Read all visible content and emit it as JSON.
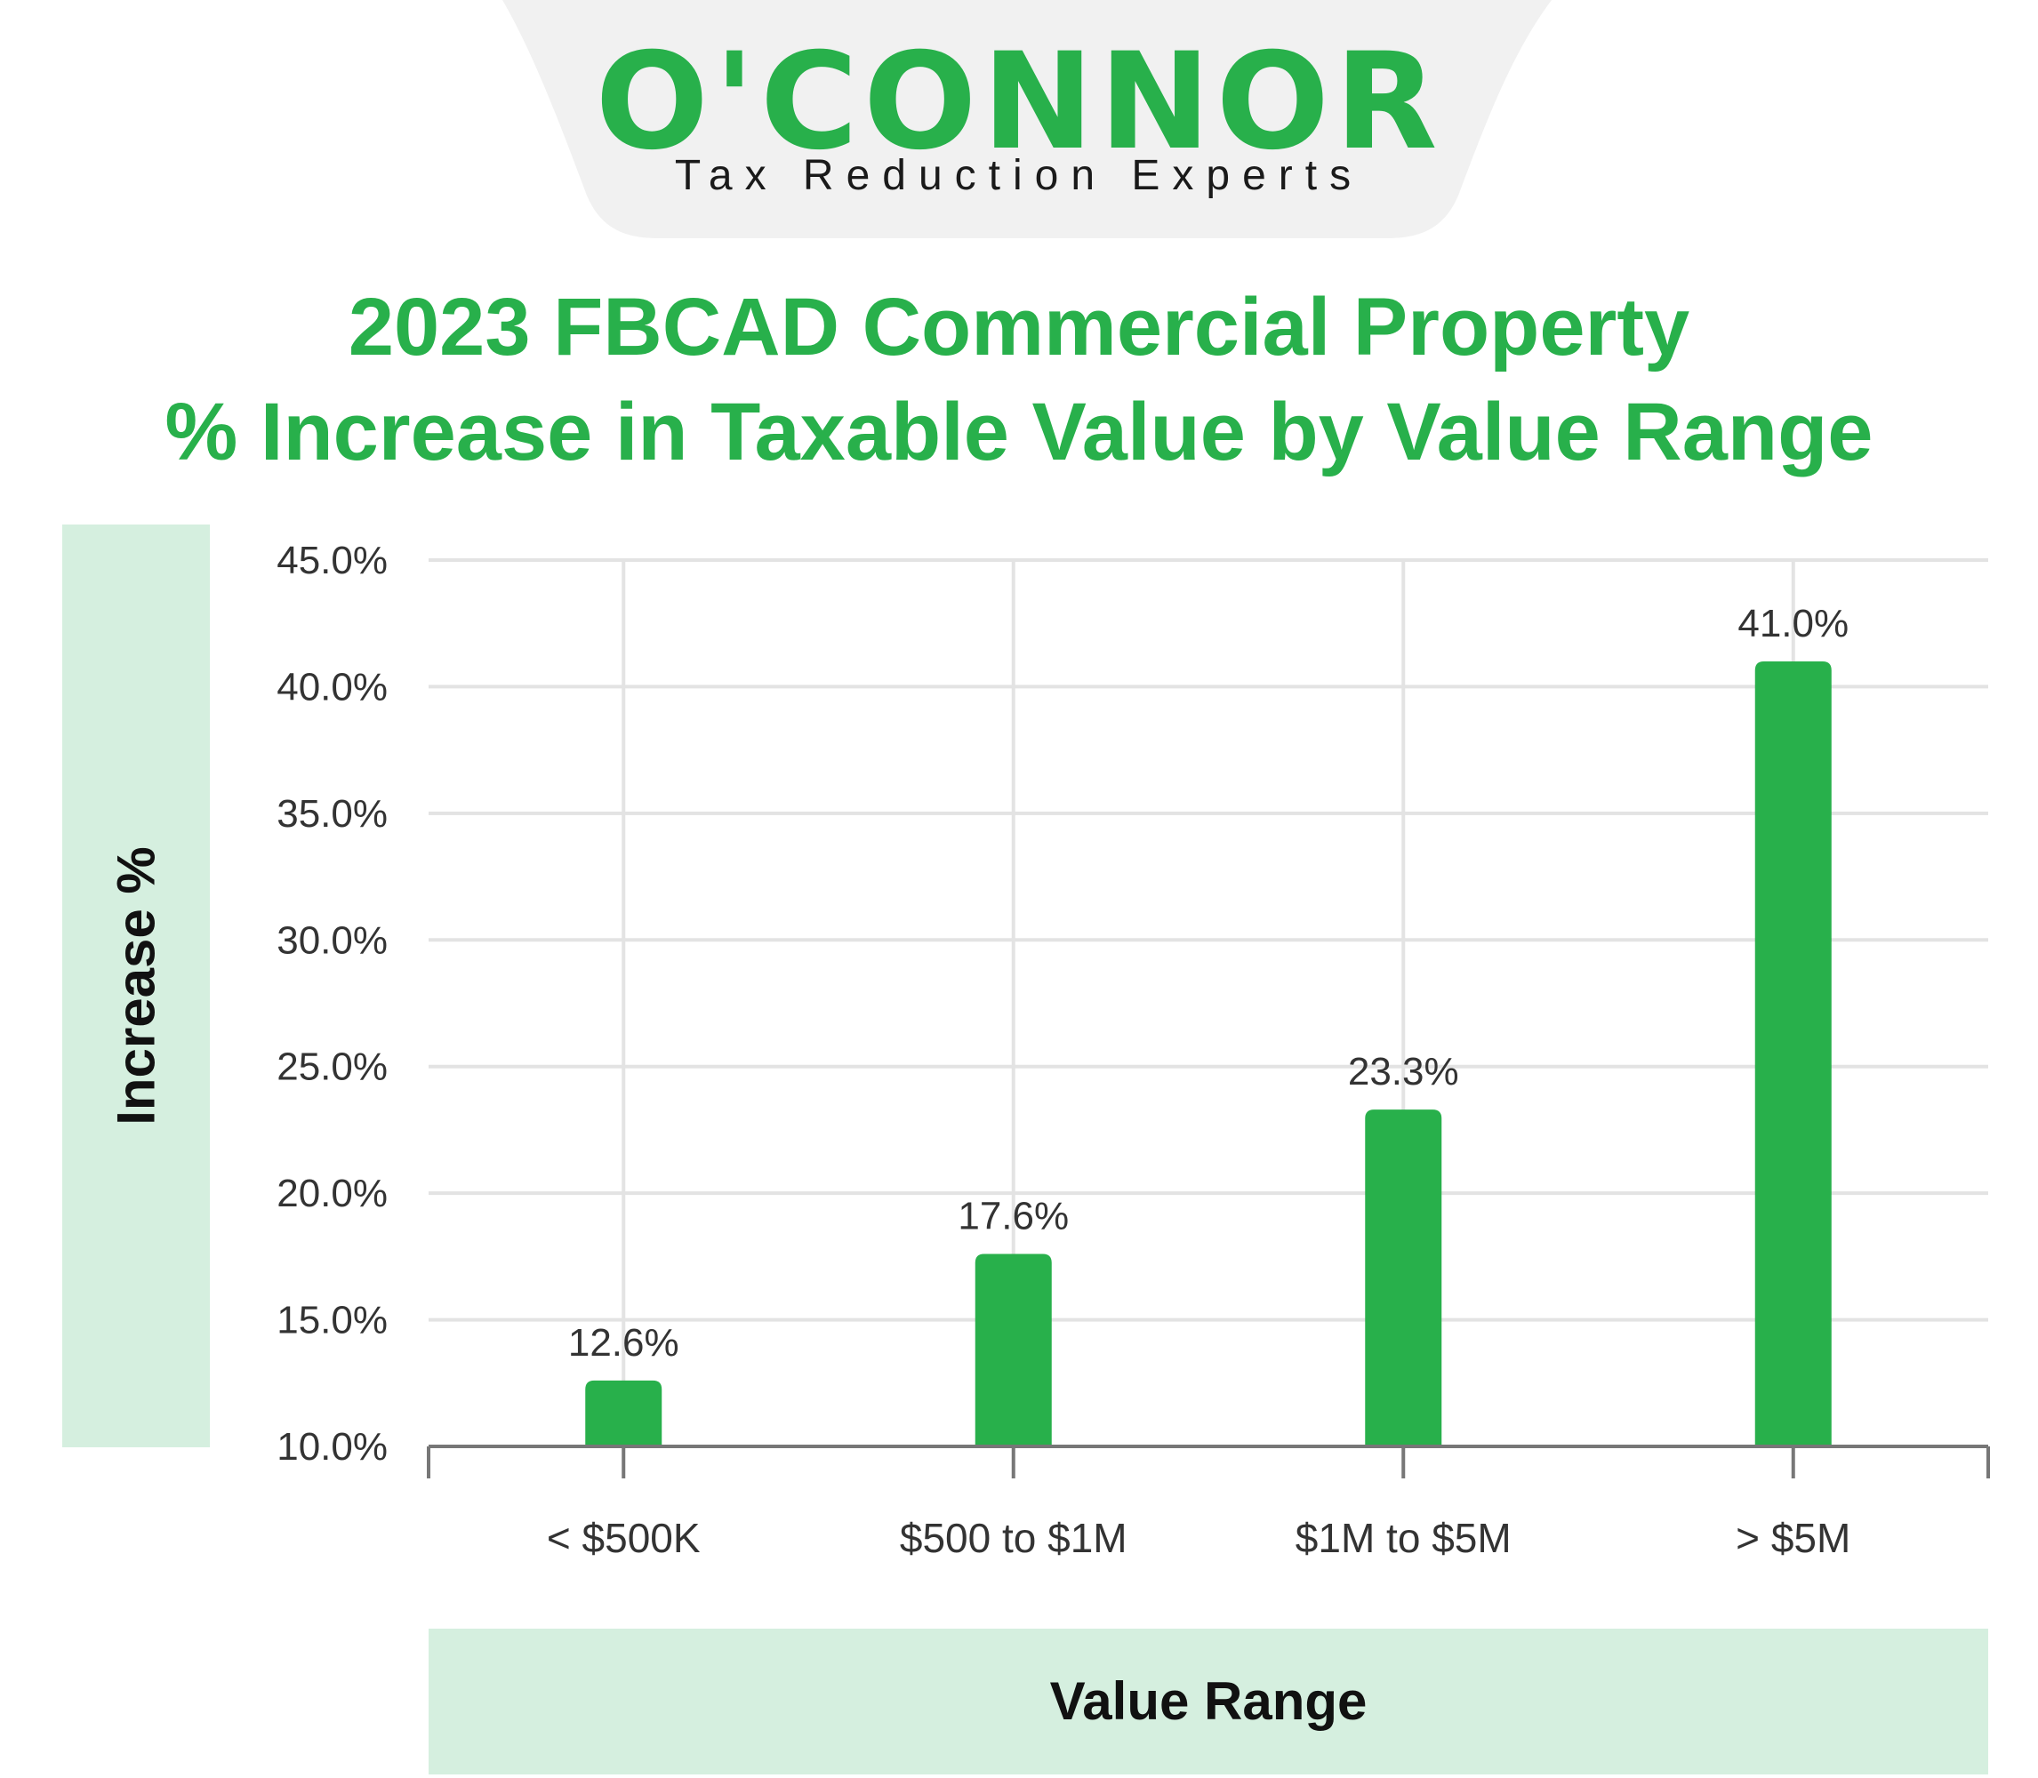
{
  "brand": {
    "logo": "O'CONNOR",
    "tagline": "Tax Reduction Experts",
    "green": "#28b04b",
    "tab_color": "#f1f1f1"
  },
  "title_lines": [
    "2023 FBCAD Commercial Property",
    "% Increase in Taxable Value by Value Range"
  ],
  "chart_data": {
    "type": "bar",
    "categories": [
      "< $500K",
      "$500 to $1M",
      "$1M to $5M",
      "> $5M"
    ],
    "values": [
      12.6,
      17.6,
      23.3,
      41.0
    ],
    "value_labels": [
      "12.6%",
      "17.6%",
      "23.3%",
      "41.0%"
    ],
    "xlabel": "Value Range",
    "ylabel": "Increase %",
    "ylim": [
      10,
      45
    ],
    "yticks": [
      10,
      15,
      20,
      25,
      30,
      35,
      40,
      45
    ],
    "ytick_labels": [
      "10.0%",
      "15.0%",
      "20.0%",
      "25.0%",
      "30.0%",
      "35.0%",
      "40.0%",
      "45.0%"
    ],
    "grid": true,
    "bar_color": "#28b04b",
    "axis_label_bg": "#d5efdf"
  }
}
